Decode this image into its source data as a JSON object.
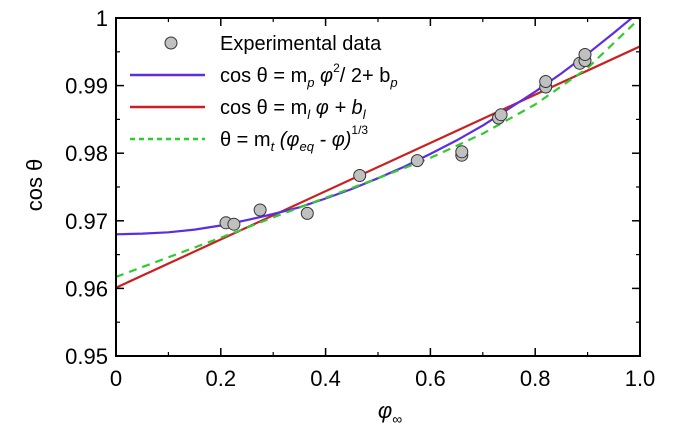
{
  "chart_data": {
    "type": "scatter",
    "xlabel": {
      "symbol": "φ",
      "subscript": "∞"
    },
    "ylabel": "cos θ",
    "xlim": [
      0,
      1.0
    ],
    "ylim": [
      0.95,
      1.0
    ],
    "xticks": [
      "0",
      "0.2",
      "0.4",
      "0.6",
      "0.8",
      "1.0"
    ],
    "yticks": [
      "0.95",
      "0.96",
      "0.97",
      "0.98",
      "0.99",
      "1"
    ],
    "grid": false,
    "legend_position": "top-right",
    "series": [
      {
        "name": "Experimental data",
        "kind": "points",
        "color": "#c0c0c0",
        "x": [
          0.21,
          0.225,
          0.275,
          0.365,
          0.465,
          0.575,
          0.66,
          0.66,
          0.73,
          0.735,
          0.82,
          0.82,
          0.885,
          0.895,
          0.895
        ],
        "y": [
          0.9697,
          0.9695,
          0.9716,
          0.9711,
          0.9767,
          0.9789,
          0.9797,
          0.9802,
          0.9852,
          0.9857,
          0.9898,
          0.9906,
          0.9933,
          0.9937,
          0.9946
        ]
      },
      {
        "name": "cos θ = m_p φ²/ 2+ b_p",
        "kind": "line",
        "color": "#5b2ee6",
        "style": "solid",
        "x": [
          0,
          0.05,
          0.1,
          0.15,
          0.2,
          0.25,
          0.3,
          0.35,
          0.4,
          0.45,
          0.5,
          0.55,
          0.6,
          0.65,
          0.7,
          0.75,
          0.8,
          0.85,
          0.9,
          0.95,
          1.0
        ],
        "y": [
          0.968,
          0.9681,
          0.9683,
          0.9687,
          0.9693,
          0.9701,
          0.971,
          0.972,
          0.9733,
          0.9747,
          0.9763,
          0.978,
          0.9799,
          0.9819,
          0.9841,
          0.9866,
          0.9891,
          0.9918,
          0.9947,
          0.9978,
          1.001
        ]
      },
      {
        "name": "cos θ = m_l φ + b_l",
        "kind": "line",
        "color": "#cc1f1f",
        "style": "solid",
        "x": [
          0,
          1.0
        ],
        "y": [
          0.9601,
          0.9958
        ]
      },
      {
        "name": "θ = m_t (φ_eq - φ)^1/3",
        "kind": "line",
        "color": "#2ecc2e",
        "style": "dashed",
        "x": [
          0,
          0.1,
          0.2,
          0.3,
          0.4,
          0.5,
          0.6,
          0.7,
          0.8,
          0.9,
          1.0
        ],
        "y": [
          0.9617,
          0.9646,
          0.9675,
          0.9705,
          0.9734,
          0.9763,
          0.9793,
          0.9829,
          0.9872,
          0.9926,
          1.0
        ]
      }
    ],
    "legend": {
      "experimental": "Experimental data",
      "parabola": {
        "prefix": "cos θ = m",
        "sub1": "p",
        "mid1": " φ",
        "sup": "2",
        "mid2": "/ 2+ b",
        "sub2": "p"
      },
      "linear": {
        "prefix": "cos θ = m",
        "sub1": "l",
        "mid1": " φ + b",
        "sub2": "l"
      },
      "power": {
        "prefix": "θ = m",
        "sub1": "t",
        "mid1": " (φ",
        "sub2": "eq",
        "mid2": " - φ)",
        "sup": "1/3"
      }
    }
  }
}
